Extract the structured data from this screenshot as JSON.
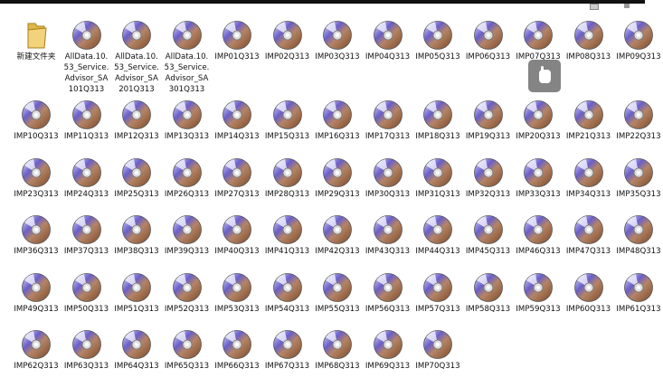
{
  "items": [
    {
      "label": "新建文件夹"
    },
    {
      "label": "AllData.10.53_Service.Advisor_SA101Q313"
    },
    {
      "label": "AllData.10.53_Service.Advisor_SA201Q313"
    },
    {
      "label": "AllData.10.53_Service.Advisor_SA301Q313"
    },
    {
      "label": "IMP01Q313"
    },
    {
      "label": "IMP02Q313"
    },
    {
      "label": "IMP03Q313"
    },
    {
      "label": "IMP04Q313"
    },
    {
      "label": "IMP05Q313"
    },
    {
      "label": "IMP06Q313"
    },
    {
      "label": "IMP07Q313"
    },
    {
      "label": "IMP08Q313"
    },
    {
      "label": "IMP09Q313"
    },
    {
      "label": "IMP10Q313"
    },
    {
      "label": "IMP11Q313"
    },
    {
      "label": "IMP12Q313"
    },
    {
      "label": "IMP13Q313"
    },
    {
      "label": "IMP14Q313"
    },
    {
      "label": "IMP15Q313"
    },
    {
      "label": "IMP16Q313"
    },
    {
      "label": "IMP17Q313"
    },
    {
      "label": "IMP18Q313"
    },
    {
      "label": "IMP19Q313"
    },
    {
      "label": "IMP20Q313"
    },
    {
      "label": "IMP21Q313"
    },
    {
      "label": "IMP22Q313"
    },
    {
      "label": "IMP23Q313"
    },
    {
      "label": "IMP24Q313"
    },
    {
      "label": "IMP25Q313"
    },
    {
      "label": "IMP26Q313"
    },
    {
      "label": "IMP27Q313"
    },
    {
      "label": "IMP28Q313"
    },
    {
      "label": "IMP29Q313"
    },
    {
      "label": "IMP30Q313"
    },
    {
      "label": "IMP31Q313"
    },
    {
      "label": "IMP32Q313"
    },
    {
      "label": "IMP33Q313"
    },
    {
      "label": "IMP34Q313"
    },
    {
      "label": "IMP35Q313"
    },
    {
      "label": "IMP36Q313"
    },
    {
      "label": "IMP37Q313"
    },
    {
      "label": "IMP38Q313"
    },
    {
      "label": "IMP39Q313"
    },
    {
      "label": "IMP40Q313"
    },
    {
      "label": "IMP41Q313"
    },
    {
      "label": "IMP42Q313"
    },
    {
      "label": "IMP43Q313"
    },
    {
      "label": "IMP44Q313"
    },
    {
      "label": "IMP45Q313"
    },
    {
      "label": "IMP46Q313"
    },
    {
      "label": "IMP47Q313"
    },
    {
      "label": "IMP48Q313"
    },
    {
      "label": "IMP49Q313"
    },
    {
      "label": "IMP50Q313"
    },
    {
      "label": "IMP51Q313"
    },
    {
      "label": "IMP52Q313"
    },
    {
      "label": "IMP53Q313"
    },
    {
      "label": "IMP54Q313"
    },
    {
      "label": "IMP55Q313"
    },
    {
      "label": "IMP56Q313"
    },
    {
      "label": "IMP57Q313"
    },
    {
      "label": "IMP58Q313"
    },
    {
      "label": "IMP59Q313"
    },
    {
      "label": "IMP60Q313"
    },
    {
      "label": "IMP61Q313"
    },
    {
      "label": "IMP62Q313"
    },
    {
      "label": "IMP63Q313"
    },
    {
      "label": "IMP64Q313"
    },
    {
      "label": "IMP65Q313"
    },
    {
      "label": "IMP66Q313"
    },
    {
      "label": "IMP67Q313"
    },
    {
      "label": "IMP68Q313"
    },
    {
      "label": "IMP69Q313"
    },
    {
      "label": "IMP70Q313"
    }
  ]
}
